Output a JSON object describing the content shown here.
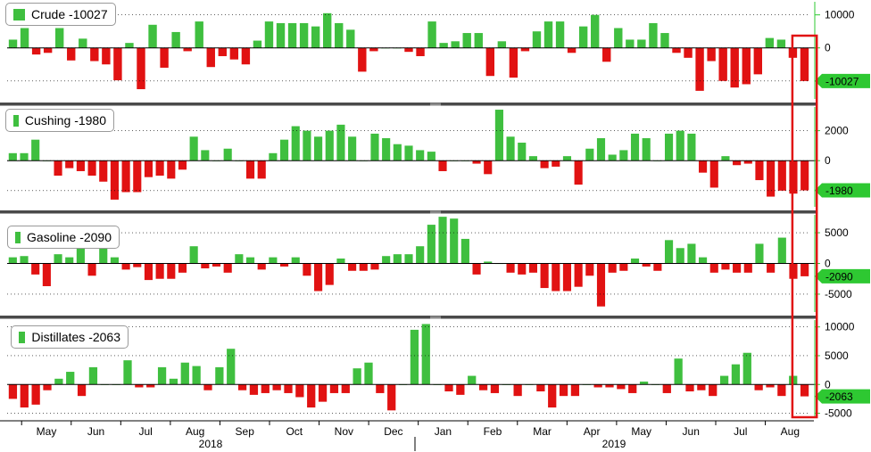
{
  "colors": {
    "positive": "#3fbf3f",
    "negative": "#e11212",
    "tag_fill": "#2ec832",
    "highlight": "#e11212",
    "separator": "#4a4a4a"
  },
  "months": [
    "May",
    "Jun",
    "Jul",
    "Aug",
    "Sep",
    "Oct",
    "Nov",
    "Dec",
    "Jan",
    "Feb",
    "Mar",
    "Apr",
    "May",
    "Jun",
    "Jul",
    "Aug"
  ],
  "years": [
    "2018",
    "2019"
  ],
  "chart_data": [
    {
      "type": "bar",
      "legend": "Crude",
      "latest_label": "-10027",
      "yticks": [
        "10000",
        "0",
        "-10000"
      ],
      "ylim": [
        -16000,
        14500
      ],
      "values": [
        2500,
        6000,
        -2000,
        -1500,
        6000,
        -3800,
        2800,
        -4000,
        -5000,
        -9800,
        1500,
        -12500,
        7000,
        -6000,
        4800,
        -1000,
        8000,
        -5800,
        -2500,
        -3500,
        -5000,
        2200,
        8000,
        7500,
        7500,
        7500,
        6500,
        10500,
        7500,
        5500,
        -7200,
        -1000,
        0,
        0,
        -1200,
        -2500,
        8000,
        1500,
        2000,
        4500,
        4500,
        -8500,
        2000,
        -9000,
        -1000,
        5000,
        8000,
        8000,
        -1500,
        6500,
        10000,
        -4200,
        6000,
        2500,
        2500,
        7500,
        4500,
        -1500,
        -3000,
        -13000,
        -4000,
        -10000,
        -12000,
        -11000,
        -8000,
        3000,
        2500,
        -3000,
        -10027
      ],
      "shown_value": -10027
    },
    {
      "type": "bar",
      "legend": "Cushing",
      "latest_label": "-1980",
      "yticks": [
        "2000",
        "0",
        "-2000"
      ],
      "ylim": [
        -3200,
        3700
      ],
      "values": [
        500,
        500,
        1400,
        0,
        -1000,
        -500,
        -700,
        -1000,
        -1400,
        -2600,
        -2100,
        -2100,
        -1100,
        -1000,
        -1200,
        -600,
        1600,
        700,
        0,
        800,
        0,
        -1200,
        -1200,
        500,
        1400,
        2300,
        2000,
        1600,
        2000,
        2400,
        1600,
        0,
        1800,
        1500,
        1100,
        1000,
        700,
        600,
        -700,
        0,
        0,
        -200,
        -900,
        3400,
        1600,
        1200,
        300,
        -500,
        -400,
        300,
        -1600,
        800,
        1500,
        400,
        700,
        1800,
        1500,
        0,
        1800,
        2000,
        1800,
        -800,
        -1800,
        300,
        -300,
        -200,
        -1300,
        -2400,
        -2000,
        -2200,
        -1980
      ],
      "shown_value": -1980
    },
    {
      "type": "bar",
      "legend": "Gasoline",
      "latest_label": "-2090",
      "yticks": [
        "5000",
        "0",
        "-5000"
      ],
      "ylim": [
        -8200,
        8200
      ],
      "values": [
        1000,
        1200,
        -1800,
        -3700,
        1500,
        1000,
        3000,
        -2000,
        3000,
        1000,
        -1000,
        -600,
        -2700,
        -2500,
        -2500,
        -1500,
        2800,
        -800,
        -500,
        -1500,
        1500,
        1000,
        -1000,
        1000,
        -500,
        1000,
        -2000,
        -4500,
        -3500,
        800,
        -1200,
        -1200,
        -1000,
        1200,
        1500,
        1500,
        2800,
        6300,
        7600,
        7300,
        4000,
        -1800,
        300,
        0,
        -1500,
        -1800,
        -1500,
        -4000,
        -4500,
        -4500,
        -3800,
        -2000,
        -7000,
        -1500,
        -1200,
        800,
        -500,
        -1200,
        3800,
        2500,
        3200,
        1000,
        -1500,
        -1000,
        -1500,
        -1500,
        3200,
        -1500,
        4200,
        -2500,
        -2090
      ],
      "shown_value": -2090
    },
    {
      "type": "bar",
      "legend": "Distillates",
      "latest_label": "-2063",
      "yticks": [
        "10000",
        "5000",
        "0",
        "-5000"
      ],
      "ylim": [
        -6000,
        11500
      ],
      "values": [
        -2500,
        -4000,
        -3500,
        -1000,
        1000,
        2200,
        -2000,
        3000,
        0,
        0,
        4200,
        -500,
        -500,
        3000,
        1000,
        3800,
        3200,
        -1000,
        3000,
        6200,
        -1000,
        -1800,
        -1500,
        -1000,
        -1500,
        -2200,
        -4000,
        -3000,
        -1500,
        -1500,
        2800,
        3800,
        -1500,
        -4500,
        0,
        9500,
        10500,
        0,
        -1200,
        -1800,
        1500,
        -1000,
        -1500,
        0,
        -2000,
        0,
        -1200,
        -4000,
        -2000,
        -2000,
        0,
        -500,
        -500,
        -800,
        -1500,
        500,
        0,
        -1500,
        4500,
        -1200,
        -1000,
        -2000,
        1500,
        3500,
        5500,
        -1000,
        -500,
        -2000,
        1500,
        -2063
      ],
      "shown_value": -2063
    }
  ]
}
